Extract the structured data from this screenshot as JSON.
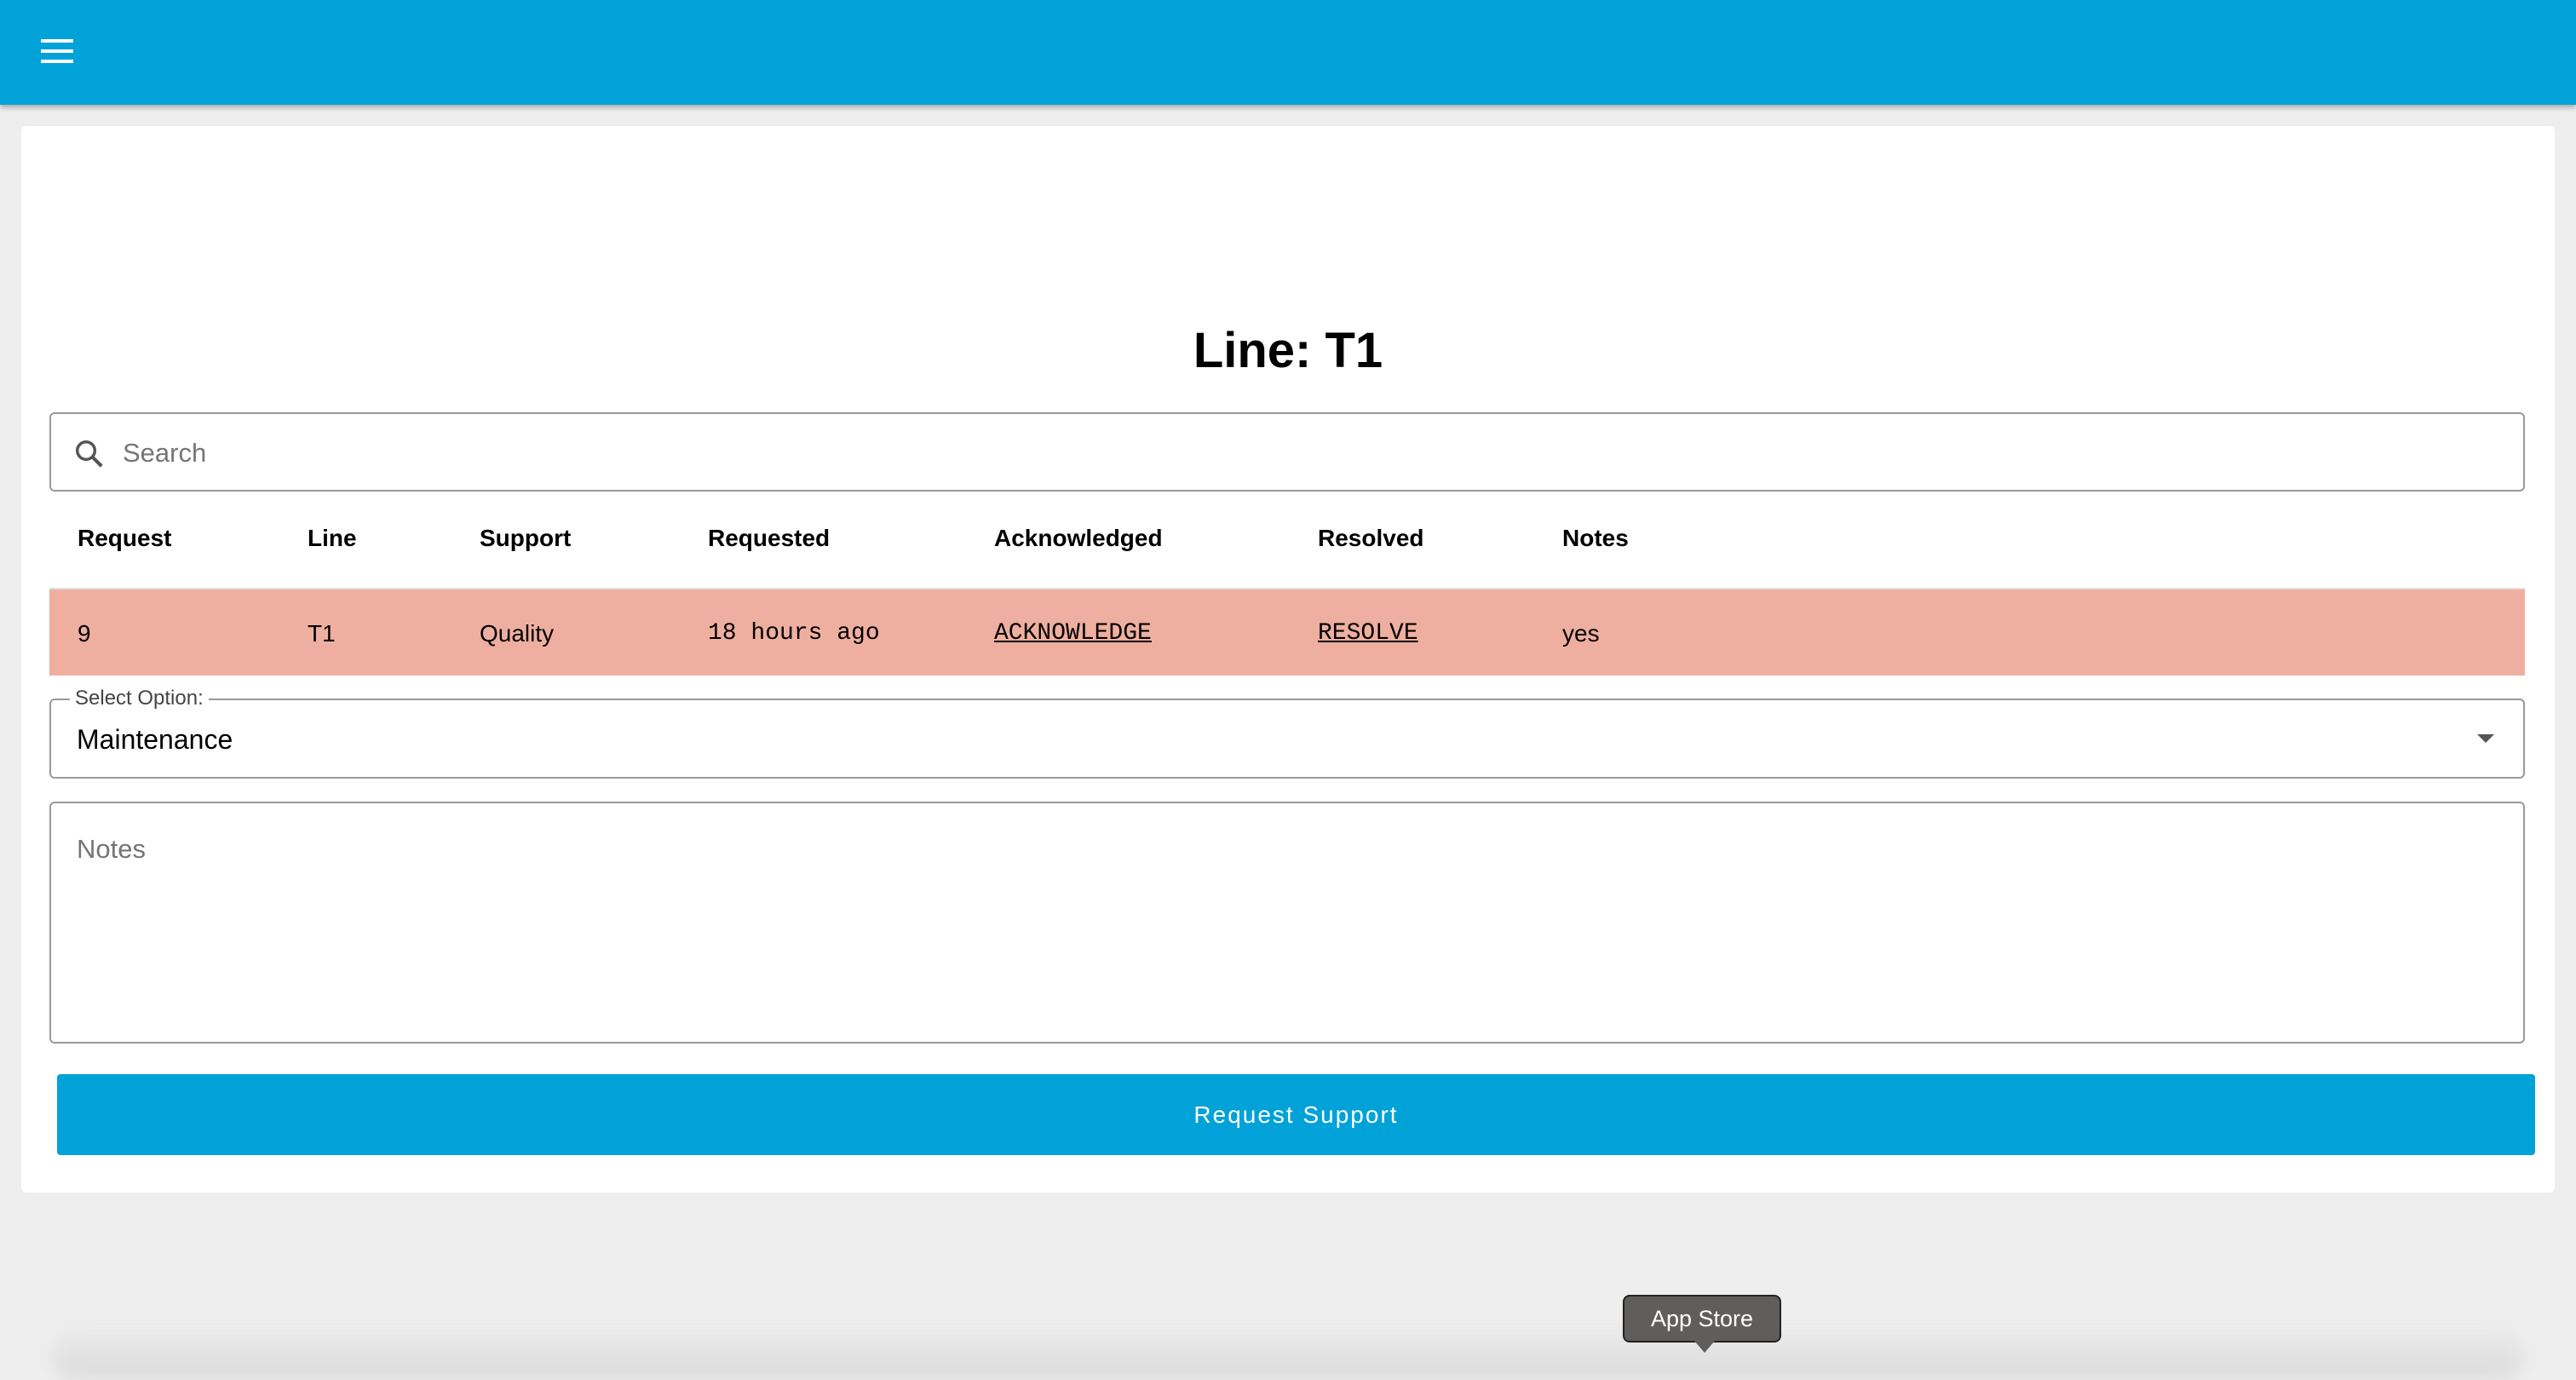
{
  "appbar": {
    "menu_icon": "hamburger-menu-icon",
    "color": "#00a2d8"
  },
  "page": {
    "title": "Line: T1"
  },
  "search": {
    "placeholder": "Search",
    "value": "",
    "icon": "search-icon"
  },
  "table": {
    "columns": [
      "Request",
      "Line",
      "Support",
      "Requested",
      "Acknowledged",
      "Resolved",
      "Notes"
    ],
    "rows": [
      {
        "request": "9",
        "line": "T1",
        "support": "Quality",
        "requested": "18 hours ago",
        "acknowledged": "ACKNOWLEDGE",
        "resolved": "RESOLVE",
        "notes": "yes",
        "highlight_color": "#efafa0"
      }
    ]
  },
  "form": {
    "select_label": "Select Option:",
    "select_value": "Maintenance",
    "notes_placeholder": "Notes",
    "submit_label": "Request Support"
  },
  "dock": {
    "tooltip": "App Store"
  }
}
